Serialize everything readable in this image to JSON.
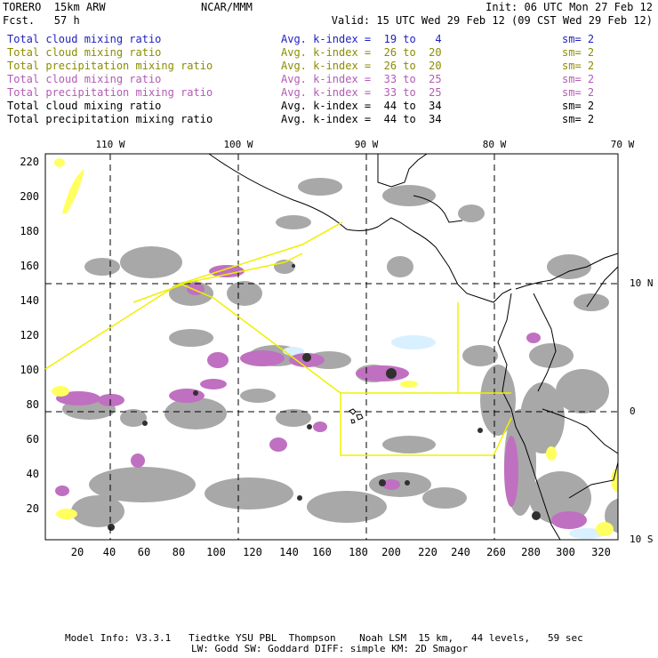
{
  "header": {
    "model": "TORERO  15km ARW",
    "fcst": "Fcst.   57 h",
    "center": "NCAR/MMM",
    "init": "Init: 06 UTC Mon 27 Feb 12",
    "valid": "Valid: 15 UTC Wed 29 Feb 12 (09 CST Wed 29 Feb 12)"
  },
  "legend": [
    {
      "name": "Total cloud mixing ratio",
      "stat": "Avg. k-index =  19 to   4",
      "sm": "sm= 2",
      "color": "#1f1fbf"
    },
    {
      "name": "Total cloud mixing ratio",
      "stat": "Avg. k-index =  26 to  20",
      "sm": "sm= 2",
      "color": "#8c8c00"
    },
    {
      "name": "Total precipitation mixing ratio",
      "stat": "Avg. k-index =  26 to  20",
      "sm": "sm= 2",
      "color": "#8c8c00"
    },
    {
      "name": "Total cloud mixing ratio",
      "stat": "Avg. k-index =  33 to  25",
      "sm": "sm= 2",
      "color": "#b45ab4"
    },
    {
      "name": "Total precipitation mixing ratio",
      "stat": "Avg. k-index =  33 to  25",
      "sm": "sm= 2",
      "color": "#b45ab4"
    },
    {
      "name": "Total cloud mixing ratio",
      "stat": "Avg. k-index =  44 to  34",
      "sm": "sm= 2",
      "color": "#000000"
    },
    {
      "name": "Total precipitation mixing ratio",
      "stat": "Avg. k-index =  44 to  34",
      "sm": "sm= 2",
      "color": "#000000"
    }
  ],
  "map": {
    "lon_labels": [
      "110 W",
      "100 W",
      "90 W",
      "80 W",
      "70 W"
    ],
    "lat_labels": [
      "10 N",
      "0",
      "10 S"
    ],
    "x_ticks": [
      "20",
      "40",
      "60",
      "80",
      "100",
      "120",
      "140",
      "160",
      "180",
      "200",
      "220",
      "240",
      "260",
      "280",
      "300",
      "320"
    ],
    "y_ticks": [
      "220",
      "200",
      "180",
      "160",
      "140",
      "120",
      "100",
      "80",
      "60",
      "40",
      "20"
    ],
    "colors": {
      "gray_cloud": "#9a9a9a",
      "dark_cloud": "#303030",
      "purple": "#c070c0",
      "yellow": "#ffff60",
      "light_blue": "#d8f0ff",
      "coast": "#000000",
      "domain_outline": "#f0f000"
    }
  },
  "footer": {
    "line1": "Model Info: V3.3.1   Tiedtke YSU PBL  Thompson    Noah LSM  15 km,   44 levels,   59 sec",
    "line2": "LW: Godd SW: Goddard DIFF: simple KM: 2D Smagor"
  }
}
